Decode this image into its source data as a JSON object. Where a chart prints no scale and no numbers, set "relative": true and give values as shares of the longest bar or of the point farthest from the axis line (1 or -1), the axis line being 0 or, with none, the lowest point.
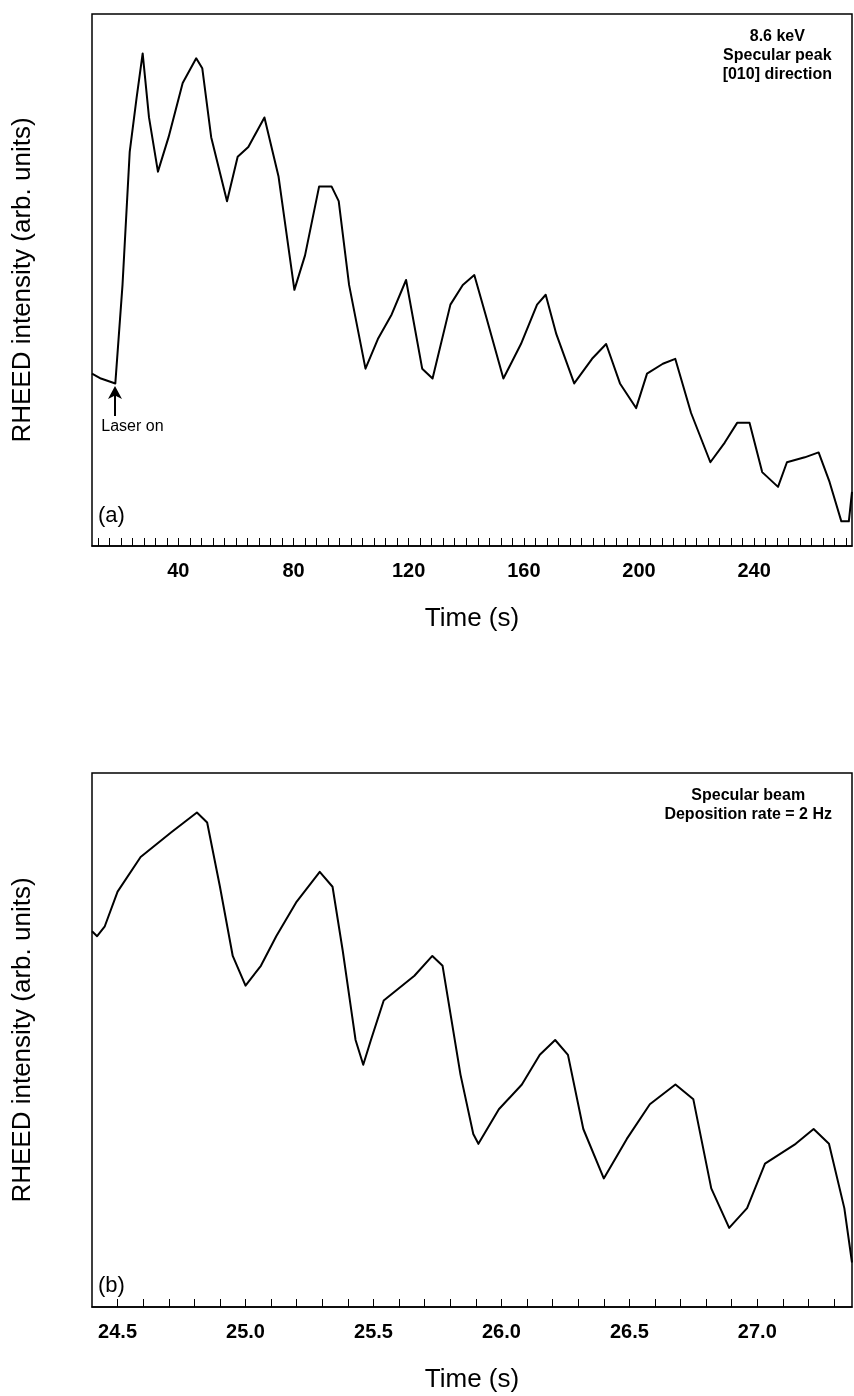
{
  "chart_data": [
    {
      "type": "line",
      "xlabel": "Time (s)",
      "ylabel": "RHEED intensity (arb. units)",
      "relative": true,
      "marker": "none",
      "line_style": "solid",
      "xlim": [
        10,
        274
      ],
      "xticks": [
        {
          "value": 12,
          "label": null
        },
        {
          "value": 16,
          "label": null
        },
        {
          "value": 20,
          "label": null
        },
        {
          "value": 24,
          "label": null
        },
        {
          "value": 28,
          "label": null
        },
        {
          "value": 32,
          "label": null
        },
        {
          "value": 36,
          "label": null
        },
        40,
        {
          "value": 44,
          "label": null
        },
        {
          "value": 48,
          "label": null
        },
        {
          "value": 52,
          "label": null
        },
        {
          "value": 56,
          "label": null
        },
        {
          "value": 60,
          "label": null
        },
        {
          "value": 64,
          "label": null
        },
        {
          "value": 68,
          "label": null
        },
        {
          "value": 72,
          "label": null
        },
        {
          "value": 76,
          "label": null
        },
        80,
        {
          "value": 84,
          "label": null
        },
        {
          "value": 88,
          "label": null
        },
        {
          "value": 92,
          "label": null
        },
        {
          "value": 96,
          "label": null
        },
        {
          "value": 100,
          "label": null
        },
        {
          "value": 104,
          "label": null
        },
        {
          "value": 108,
          "label": null
        },
        {
          "value": 112,
          "label": null
        },
        {
          "value": 116,
          "label": null
        },
        120,
        {
          "value": 124,
          "label": null
        },
        {
          "value": 128,
          "label": null
        },
        {
          "value": 132,
          "label": null
        },
        {
          "value": 136,
          "label": null
        },
        {
          "value": 140,
          "label": null
        },
        {
          "value": 144,
          "label": null
        },
        {
          "value": 148,
          "label": null
        },
        {
          "value": 152,
          "label": null
        },
        {
          "value": 156,
          "label": null
        },
        160,
        {
          "value": 164,
          "label": null
        },
        {
          "value": 168,
          "label": null
        },
        {
          "value": 172,
          "label": null
        },
        {
          "value": 176,
          "label": null
        },
        {
          "value": 180,
          "label": null
        },
        {
          "value": 184,
          "label": null
        },
        {
          "value": 188,
          "label": null
        },
        {
          "value": 192,
          "label": null
        },
        {
          "value": 196,
          "label": null
        },
        200,
        {
          "value": 204,
          "label": null
        },
        {
          "value": 208,
          "label": null
        },
        {
          "value": 212,
          "label": null
        },
        {
          "value": 216,
          "label": null
        },
        {
          "value": 220,
          "label": null
        },
        {
          "value": 224,
          "label": null
        },
        {
          "value": 228,
          "label": null
        },
        {
          "value": 232,
          "label": null
        },
        {
          "value": 236,
          "label": null
        },
        240,
        {
          "value": 244,
          "label": null
        },
        {
          "value": 248,
          "label": null
        },
        {
          "value": 252,
          "label": null
        },
        {
          "value": 256,
          "label": null
        },
        {
          "value": 260,
          "label": null
        },
        {
          "value": 264,
          "label": null
        },
        {
          "value": 268,
          "label": null
        },
        {
          "value": 272,
          "label": null
        }
      ],
      "annotations": [
        "(a)",
        "8.6 keV",
        "Specular peak",
        "[010] direction",
        {
          "text": "Laser on",
          "x": 18.1,
          "y": 0.33
        }
      ],
      "series": [
        {
          "color": "#000000",
          "x": [
            10,
            13.1,
            18.1,
            20.6,
            23.1,
            25.5,
            27.6,
            29.8,
            32.9,
            36.6,
            41.5,
            46.2,
            48.3,
            51.4,
            56.9,
            60.6,
            64.3,
            69.9,
            74.8,
            80.3,
            84.0,
            88.9,
            93.2,
            95.7,
            99.3,
            105,
            109.3,
            114.1,
            119.1,
            124.7,
            128.3,
            134.5,
            138.8,
            142.8,
            146.7,
            152.9,
            159,
            164.6,
            167.6,
            171.3,
            177.5,
            183.7,
            188.6,
            193.4,
            199,
            202.8,
            208.3,
            212.6,
            218.1,
            224.8,
            229.8,
            234.1,
            238.4,
            242.8,
            248.3,
            251.4,
            257.6,
            262.4,
            266.2,
            270.3,
            272.9,
            274
          ],
          "values": [
            0.35,
            0.34,
            0.33,
            0.53,
            0.8,
            0.91,
            1.0,
            0.87,
            0.76,
            0.83,
            0.94,
            0.99,
            0.97,
            0.83,
            0.7,
            0.79,
            0.81,
            0.87,
            0.75,
            0.52,
            0.59,
            0.73,
            0.73,
            0.7,
            0.53,
            0.36,
            0.42,
            0.47,
            0.54,
            0.36,
            0.34,
            0.49,
            0.53,
            0.55,
            0.47,
            0.34,
            0.41,
            0.49,
            0.51,
            0.43,
            0.33,
            0.38,
            0.41,
            0.33,
            0.28,
            0.35,
            0.37,
            0.38,
            0.27,
            0.17,
            0.21,
            0.25,
            0.25,
            0.15,
            0.12,
            0.17,
            0.18,
            0.19,
            0.13,
            0.05,
            0.05,
            0.11
          ]
        }
      ]
    },
    {
      "type": "line",
      "xlabel": "Time (s)",
      "ylabel": "RHEED intensity (arb. units)",
      "relative": true,
      "marker": "none",
      "line_style": "solid",
      "xlim": [
        24.4,
        27.37
      ],
      "xticks": [
        24.5,
        {
          "value": 24.6,
          "label": null
        },
        {
          "value": 24.7,
          "label": null
        },
        {
          "value": 24.8,
          "label": null
        },
        {
          "value": 24.9,
          "label": null
        },
        {
          "value": 25.0,
          "label": "25.0"
        },
        {
          "value": 25.1,
          "label": null
        },
        {
          "value": 25.2,
          "label": null
        },
        {
          "value": 25.3,
          "label": null
        },
        {
          "value": 25.4,
          "label": null
        },
        25.5,
        {
          "value": 25.6,
          "label": null
        },
        {
          "value": 25.7,
          "label": null
        },
        {
          "value": 25.8,
          "label": null
        },
        {
          "value": 25.9,
          "label": null
        },
        {
          "value": 26.0,
          "label": "26.0"
        },
        {
          "value": 26.1,
          "label": null
        },
        {
          "value": 26.2,
          "label": null
        },
        {
          "value": 26.3,
          "label": null
        },
        {
          "value": 26.4,
          "label": null
        },
        26.5,
        {
          "value": 26.6,
          "label": null
        },
        {
          "value": 26.7,
          "label": null
        },
        {
          "value": 26.8,
          "label": null
        },
        {
          "value": 26.9,
          "label": null
        },
        {
          "value": 27.0,
          "label": "27.0"
        },
        {
          "value": 27.1,
          "label": null
        },
        {
          "value": 27.2,
          "label": null
        },
        {
          "value": 27.3,
          "label": null
        }
      ],
      "annotations": [
        "(b)",
        "Specular beam",
        "Deposition rate = 2 Hz"
      ],
      "series": [
        {
          "color": "#000000",
          "x": [
            24.4,
            24.42,
            24.45,
            24.5,
            24.59,
            24.71,
            24.81,
            24.85,
            24.9,
            24.95,
            25.0,
            25.06,
            25.12,
            25.2,
            25.29,
            25.34,
            25.38,
            25.43,
            25.46,
            25.49,
            25.54,
            25.66,
            25.73,
            25.77,
            25.84,
            25.89,
            25.91,
            25.99,
            26.08,
            26.15,
            26.21,
            26.26,
            26.32,
            26.4,
            26.49,
            26.58,
            26.68,
            26.75,
            26.82,
            26.89,
            26.96,
            27.03,
            27.15,
            27.22,
            27.28,
            27.34,
            27.37
          ],
          "values": [
            0.76,
            0.75,
            0.77,
            0.84,
            0.91,
            0.96,
            1.0,
            0.98,
            0.85,
            0.71,
            0.65,
            0.69,
            0.75,
            0.82,
            0.88,
            0.85,
            0.72,
            0.54,
            0.49,
            0.54,
            0.62,
            0.67,
            0.71,
            0.69,
            0.47,
            0.35,
            0.33,
            0.4,
            0.45,
            0.51,
            0.54,
            0.51,
            0.36,
            0.26,
            0.34,
            0.41,
            0.45,
            0.42,
            0.24,
            0.16,
            0.2,
            0.29,
            0.33,
            0.36,
            0.33,
            0.2,
            0.09
          ]
        }
      ]
    }
  ]
}
